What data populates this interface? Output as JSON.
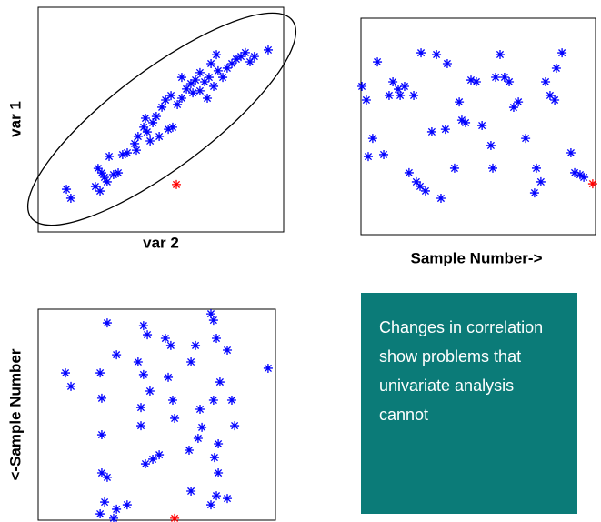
{
  "chart_data": [
    {
      "type": "scatter",
      "xlabel": "var 2",
      "ylabel": "var 1",
      "xlim": [
        0,
        100
      ],
      "ylim": [
        0,
        100
      ],
      "series": [
        {
          "color": "#0000ff",
          "x": [
            11.5,
            13.3,
            24.4,
            25.9,
            23.3,
            27,
            28.9,
            30.7,
            32.6,
            28.1,
            25.2,
            36.3,
            39.3,
            40.7,
            43,
            44.4,
            45.6,
            46.7,
            48.1,
            50.4,
            51.9,
            53,
            54.8,
            49.3,
            54.1,
            56.7,
            58.5,
            60.4,
            62.2,
            64.1,
            65.9,
            67.8,
            69.6,
            70.4,
            71.5,
            72.6,
            73.3,
            75.2,
            77,
            78.9,
            80.7,
            82.6,
            84.4,
            86.3,
            88.1,
            93.7,
            65.9,
            68.9,
            43.7,
            40,
            34.4,
            58.5,
            63
          ],
          "y": [
            19,
            15,
            28.3,
            26.3,
            20.2,
            24.3,
            33.6,
            25.5,
            26.3,
            22.3,
            18.2,
            35.2,
            39.3,
            42.5,
            46.6,
            44.5,
            40.5,
            48.6,
            51.4,
            55.5,
            58.7,
            45.7,
            46.6,
            42.5,
            60.7,
            56.7,
            59.5,
            63.6,
            66,
            67.6,
            70.9,
            66.8,
            68.8,
            74.9,
            64.8,
            78.9,
            71.7,
            68.8,
            72.9,
            74.9,
            76.9,
            78.1,
            79.8,
            75.7,
            78.1,
            81,
            62.8,
            59.5,
            50.6,
            36.4,
            34.4,
            68.8,
            61.9
          ]
        },
        {
          "color": "#ff0000",
          "x": [
            56.3
          ],
          "y": [
            21.1
          ]
        }
      ]
    },
    {
      "type": "scatter",
      "xlabel": "Sample Number->",
      "xlim": [
        0,
        100
      ],
      "ylim": [
        0,
        100
      ],
      "series": [
        {
          "color": "#0000ff",
          "x": [
            0.4,
            2.3,
            7,
            5,
            3.1,
            9.7,
            12,
            13.6,
            15.9,
            16.7,
            18.6,
            22.5,
            20.5,
            23.6,
            25.2,
            27.5,
            25.6,
            32.2,
            36.8,
            34.1,
            30.2,
            36,
            39.9,
            41.9,
            43,
            44.6,
            46.9,
            49.2,
            51.6,
            55.4,
            56.2,
            57.4,
            59.3,
            61.2,
            63.2,
            65.1,
            67.1,
            70.2,
            74.8,
            76.7,
            74,
            78.7,
            80.6,
            83.3,
            85.7,
            82.6,
            89.5,
            91.1,
            93.4,
            95
          ],
          "y": [
            68.5,
            62.2,
            79.8,
            44.5,
            36.1,
            37,
            64.3,
            70.6,
            67.2,
            64.3,
            68.5,
            64.3,
            28.6,
            24.4,
            22.3,
            20.2,
            84,
            83.2,
            79,
            16.8,
            47.5,
            48.7,
            30.7,
            61.3,
            52.9,
            51.7,
            71.4,
            70.6,
            50.4,
            41.2,
            30.7,
            72.7,
            83.2,
            72.7,
            70.6,
            58.8,
            61.3,
            44.5,
            30.7,
            24.4,
            19.3,
            70.6,
            64.3,
            76.9,
            84,
            62.2,
            37.8,
            28.6,
            27.7,
            26.5
          ]
        },
        {
          "color": "#ff0000",
          "x": [
            98.8
          ],
          "y": [
            23.5
          ]
        }
      ]
    },
    {
      "type": "scatter",
      "ylabel": "<-Sample Number",
      "xlim": [
        0,
        100
      ],
      "ylim": [
        0,
        100
      ],
      "series": [
        {
          "color": "#0000ff",
          "x": [
            11.5,
            13.8,
            29.1,
            26.1,
            33,
            26.8,
            26.8,
            26.8,
            29.1,
            28,
            26.1,
            33,
            37.5,
            44.4,
            46,
            42.1,
            44.4,
            43.3,
            43.3,
            45.2,
            48.3,
            51,
            53.6,
            55.9,
            54.8,
            56.7,
            57.5,
            64.4,
            66.3,
            68.2,
            69,
            67.4,
            63.6,
            72.8,
            73.9,
            75.1,
            76.6,
            73.9,
            75.9,
            74.3,
            75.9,
            75.1,
            72.8,
            79.7,
            81.6,
            82.8,
            79.7,
            96.9,
            64.4,
            47.1,
            31.8
          ],
          "y": [
            69.8,
            63.4,
            93.5,
            69.8,
            78.4,
            57.8,
            40.5,
            22.4,
            20.3,
            8.6,
            3,
            5.2,
            7.3,
            92.2,
            87.9,
            75,
            69,
            53.4,
            44.8,
            26.7,
            28.9,
            31,
            86.2,
            82.8,
            67.7,
            56.9,
            48.3,
            75,
            82.8,
            52.6,
            44,
            38.8,
            33.2,
            97.8,
            94.8,
            86.2,
            65.5,
            56.9,
            36.2,
            29.7,
            22.4,
            11.6,
            7.3,
            80.6,
            56.9,
            44.8,
            10.3,
            72,
            13.8,
            61.2,
            0.9
          ]
        },
        {
          "color": "#ff0000",
          "x": [
            57.5
          ],
          "y": [
            0.9
          ]
        }
      ]
    }
  ],
  "callout": {
    "text": "Changes in correlation show problems that univariate analysis cannot"
  }
}
